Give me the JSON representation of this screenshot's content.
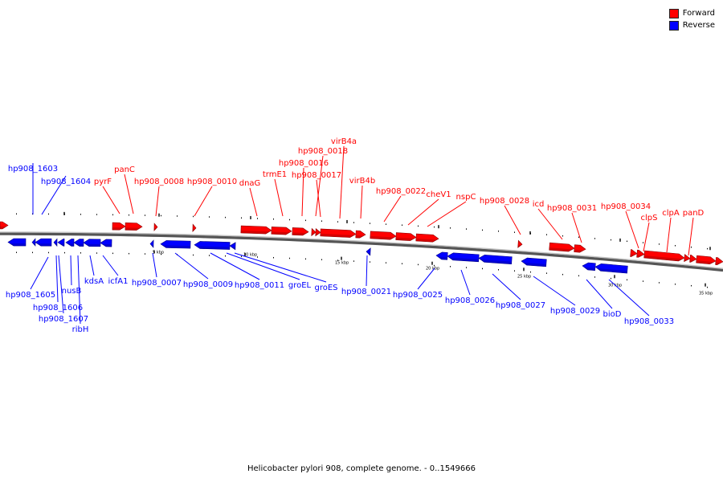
{
  "caption": "Helicobacter pylori 908, complete genome. - 0..1549666",
  "legend": {
    "forward_label": "Forward",
    "reverse_label": "Reverse",
    "forward_color": "#ff0000",
    "reverse_color": "#0000ff"
  },
  "ticks": [
    "5 kbp",
    "10 kbp",
    "15 kbp",
    "20 kbp",
    "25 kbp",
    "30 kbp",
    "35 kbp"
  ],
  "forward_labels": [
    "pyrF",
    "panC",
    "hp908_0008",
    "hp908_0010",
    "dnaG",
    "trmE1",
    "hp908_0016",
    "hp908_0018",
    "virB4a",
    "hp908_0017",
    "virB4b",
    "hp908_0022",
    "cheV1",
    "nspC",
    "hp908_0028",
    "icd",
    "hp908_0031",
    "hp908_0034",
    "clpS",
    "clpA",
    "panD"
  ],
  "reverse_labels": [
    "hp908_1603",
    "hp908_1604",
    "hp908_1605",
    "hp908_1606",
    "hp908_1607",
    "ribH",
    "nusB",
    "kdsA",
    "icfA1",
    "hp908_0007",
    "hp908_0009",
    "hp908_0011",
    "groEL",
    "groES",
    "hp908_0021",
    "hp908_0025",
    "hp908_0026",
    "hp908_0027",
    "hp908_0029",
    "bioD",
    "hp908_0033"
  ]
}
